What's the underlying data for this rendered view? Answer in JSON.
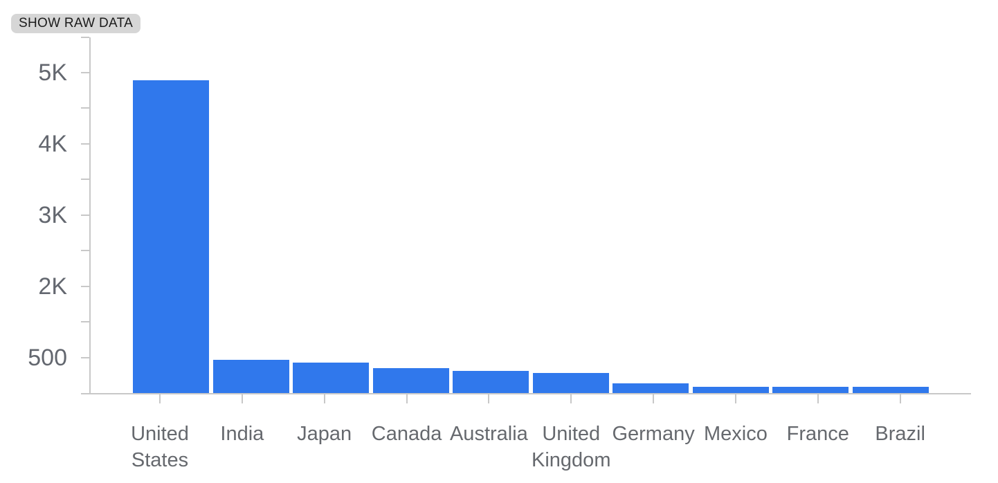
{
  "ui": {
    "show_raw_data_button": "SHOW RAW DATA"
  },
  "chart_data": {
    "type": "bar",
    "title": "",
    "xlabel": "",
    "ylabel": "",
    "categories": [
      "United States",
      "India",
      "Japan",
      "Canada",
      "Australia",
      "United Kingdom",
      "Germany",
      "Mexico",
      "France",
      "Brazil"
    ],
    "values": [
      4890,
      470,
      430,
      350,
      310,
      285,
      140,
      90,
      85,
      85
    ],
    "y_ticks": [
      {
        "label": "5K",
        "value": 5000
      },
      {
        "label": "4K",
        "value": 4000
      },
      {
        "label": "3K",
        "value": 3000
      },
      {
        "label": "2K",
        "value": 2000
      },
      {
        "label": "500",
        "value": 500
      }
    ],
    "unlabeled_minor_ticks": true,
    "total_tick_steps": 10,
    "y_scale_anchors": [
      [
        0,
        0
      ],
      [
        500,
        1
      ],
      [
        2000,
        3
      ],
      [
        5000,
        9
      ]
    ],
    "ylim_top_implied": 5500,
    "grid": false,
    "legend": false,
    "bar_color": "#3078ec",
    "axis_color": "#c8c8c8",
    "tick_label_color": "#63676f",
    "category_label_color": "#66696e"
  }
}
